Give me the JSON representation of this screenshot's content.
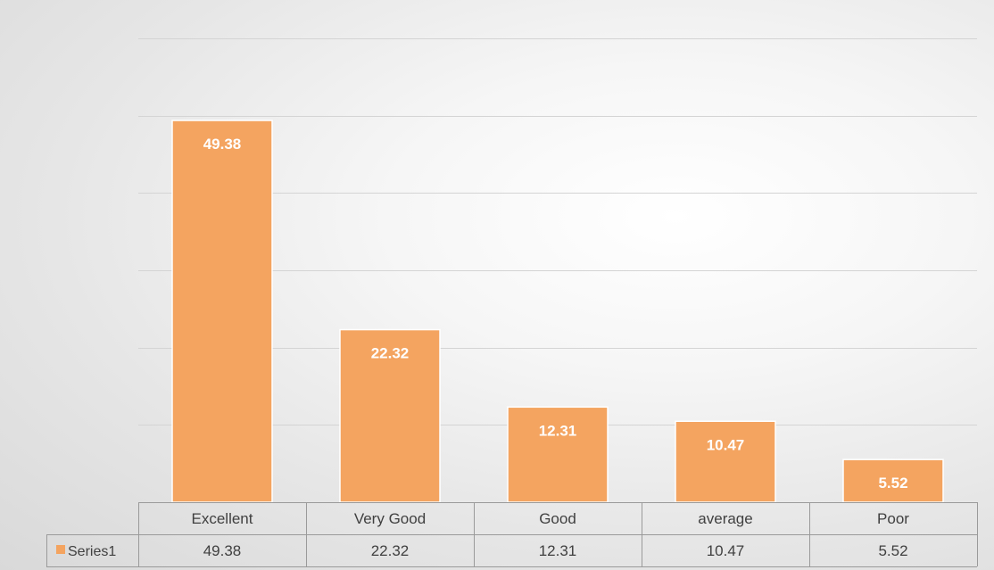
{
  "chart_data": {
    "type": "bar",
    "categories": [
      "Excellent",
      "Very Good",
      "Good",
      "average",
      "Poor"
    ],
    "series": [
      {
        "name": "Series1",
        "values": [
          49.38,
          22.32,
          12.31,
          10.47,
          5.52
        ]
      }
    ],
    "data_labels": [
      "49.38",
      "22.32",
      "12.31",
      "10.47",
      "5.52"
    ],
    "ylim": [
      0,
      60
    ],
    "grid": true,
    "data_table": true,
    "colors": {
      "bar": "#f4a460",
      "legend_key": "#f4a460"
    }
  }
}
